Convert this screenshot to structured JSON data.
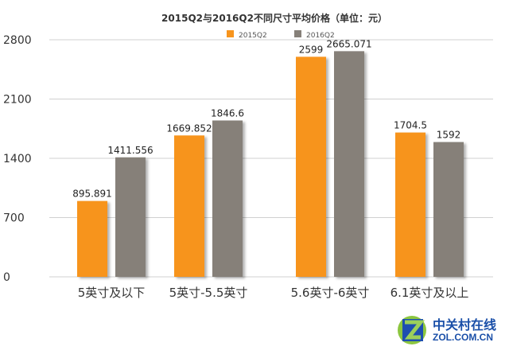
{
  "chart_data": {
    "type": "bar",
    "title": "2015Q2与2016Q2不同尺寸平均价格（单位：元）",
    "categories": [
      "5英寸及以下",
      "5英寸-5.5英寸",
      "5.6英寸-6英寸",
      "6.1英寸及以上"
    ],
    "series": [
      {
        "name": "2015Q2",
        "color": "#F7941D",
        "values": [
          895.891,
          1669.852,
          2599,
          1704.5
        ],
        "labels": [
          "895.891",
          "1669.852",
          "2599",
          "1704.5"
        ]
      },
      {
        "name": "2016Q2",
        "color": "#868079",
        "values": [
          1411.556,
          1846.6,
          2665.071,
          1592
        ],
        "labels": [
          "1411.556",
          "1846.6",
          "2665.071",
          "1592"
        ]
      }
    ],
    "ylim": [
      0,
      2800
    ],
    "yticks": [
      "0",
      "700",
      "1400",
      "2100",
      "2800"
    ],
    "grid": true,
    "legend": "top-center"
  },
  "watermark": {
    "cn": "中关村在线",
    "en": "ZOL.COM.CN"
  }
}
